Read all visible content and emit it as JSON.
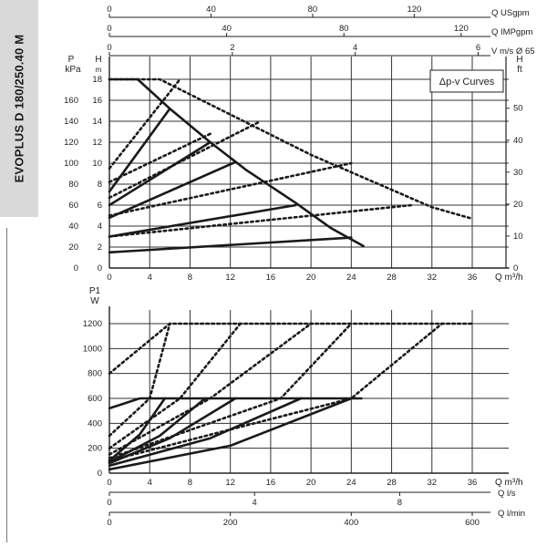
{
  "sidebar": {
    "model": "EVOPLUS D 180/250.40 M"
  },
  "legend": {
    "label": "Δp-v Curves"
  },
  "chart_data": [
    {
      "type": "line",
      "title": "",
      "xlabel": "Q m³/h",
      "xlim": [
        0,
        36
      ],
      "xticks": [
        0,
        4,
        8,
        12,
        16,
        20,
        24,
        28,
        32,
        36
      ],
      "ylabel_left": "P kPa",
      "ylim_left": [
        0,
        180
      ],
      "yticks_left": [
        0,
        20,
        40,
        60,
        80,
        100,
        120,
        140,
        160
      ],
      "ylabel_left_inner": "H m",
      "yticks_left_inner": [
        0,
        2,
        4,
        6,
        8,
        10,
        12,
        14,
        16,
        18
      ],
      "ylabel_right": "H ft",
      "yticks_right": [
        0,
        10,
        20,
        30,
        40,
        50
      ],
      "legend": "Δp-v Curves",
      "legend_position": "top-right",
      "grid": true,
      "series": [
        {
          "style": "solid",
          "points": [
            [
              0,
              180
            ],
            [
              2.8,
              180
            ],
            [
              6,
              152
            ],
            [
              10,
              120
            ],
            [
              13.5,
              94
            ],
            [
              18.5,
              62
            ],
            [
              22,
              38
            ],
            [
              25.2,
              21
            ]
          ]
        },
        {
          "style": "solid",
          "points": [
            [
              0,
              73
            ],
            [
              6,
              152
            ]
          ]
        },
        {
          "style": "solid",
          "points": [
            [
              0,
              60
            ],
            [
              10,
              120
            ]
          ]
        },
        {
          "style": "solid",
          "points": [
            [
              0,
              48
            ],
            [
              12.5,
              101
            ]
          ]
        },
        {
          "style": "solid",
          "points": [
            [
              0,
              30
            ],
            [
              18.5,
              60
            ]
          ]
        },
        {
          "style": "solid",
          "points": [
            [
              0,
              15
            ],
            [
              24,
              29
            ]
          ]
        },
        {
          "style": "dotted",
          "points": [
            [
              0,
              180
            ],
            [
              5,
              180
            ],
            [
              20,
              108
            ],
            [
              32,
              58
            ],
            [
              36,
              47
            ]
          ]
        },
        {
          "style": "dotted",
          "points": [
            [
              0,
              95
            ],
            [
              7,
              180
            ]
          ]
        },
        {
          "style": "dotted",
          "points": [
            [
              0,
              82
            ],
            [
              10,
              128
            ]
          ]
        },
        {
          "style": "dotted",
          "points": [
            [
              0,
              67
            ],
            [
              15,
              140
            ]
          ]
        },
        {
          "style": "dotted",
          "points": [
            [
              0,
              50
            ],
            [
              24,
              100
            ]
          ]
        },
        {
          "style": "dotted",
          "points": [
            [
              0,
              30
            ],
            [
              30,
              60
            ]
          ]
        }
      ]
    },
    {
      "type": "line",
      "title": "",
      "xlabel": "Q m³/h",
      "xlim": [
        0,
        36
      ],
      "xticks": [
        0,
        4,
        8,
        12,
        16,
        20,
        24,
        28,
        32,
        36
      ],
      "ylabel": "P1 W",
      "ylim": [
        0,
        1200
      ],
      "yticks": [
        0,
        200,
        400,
        600,
        800,
        1000,
        1200
      ],
      "grid": true,
      "series": [
        {
          "style": "solid",
          "points": [
            [
              0,
              520
            ],
            [
              3,
              600
            ],
            [
              25,
              600
            ]
          ]
        },
        {
          "style": "solid",
          "points": [
            [
              0,
              100
            ],
            [
              3,
              310
            ],
            [
              5.5,
              600
            ]
          ]
        },
        {
          "style": "solid",
          "points": [
            [
              0,
              90
            ],
            [
              5,
              300
            ],
            [
              9.5,
              600
            ]
          ]
        },
        {
          "style": "solid",
          "points": [
            [
              0,
              80
            ],
            [
              6,
              280
            ],
            [
              12.5,
              600
            ]
          ]
        },
        {
          "style": "solid",
          "points": [
            [
              0,
              60
            ],
            [
              10,
              280
            ],
            [
              19,
              600
            ]
          ]
        },
        {
          "style": "solid",
          "points": [
            [
              0,
              30
            ],
            [
              12,
              220
            ],
            [
              24,
              600
            ]
          ]
        },
        {
          "style": "dotted",
          "points": [
            [
              0,
              800
            ],
            [
              6,
              1200
            ],
            [
              36,
              1200
            ]
          ]
        },
        {
          "style": "dotted",
          "points": [
            [
              0,
              300
            ],
            [
              4,
              600
            ],
            [
              6,
              1200
            ]
          ]
        },
        {
          "style": "dotted",
          "points": [
            [
              0,
              200
            ],
            [
              7,
              600
            ],
            [
              13,
              1200
            ]
          ]
        },
        {
          "style": "dotted",
          "points": [
            [
              0,
              150
            ],
            [
              10,
              600
            ],
            [
              20,
              1200
            ]
          ]
        },
        {
          "style": "dotted",
          "points": [
            [
              0,
              120
            ],
            [
              17,
              600
            ],
            [
              24,
              1200
            ]
          ]
        },
        {
          "style": "dotted",
          "points": [
            [
              0,
              100
            ],
            [
              24,
              600
            ],
            [
              33,
              1200
            ]
          ]
        }
      ]
    }
  ],
  "top_axes": [
    {
      "label": "Q USgpm",
      "max": 150,
      "ticks": [
        0,
        40,
        80,
        120
      ]
    },
    {
      "label": "Q IMPgpm",
      "max": 130,
      "ticks": [
        0,
        40,
        80,
        120
      ]
    },
    {
      "label": "V m/s Ø 65",
      "max": 6.2,
      "ticks": [
        0,
        2,
        4,
        6
      ]
    }
  ],
  "bottom_axes": [
    {
      "label": "Q l/s",
      "max": 10,
      "ticks": [
        0,
        4,
        8
      ]
    },
    {
      "label": "Q l/min",
      "max": 600,
      "ticks": [
        0,
        200,
        400,
        600
      ]
    }
  ]
}
